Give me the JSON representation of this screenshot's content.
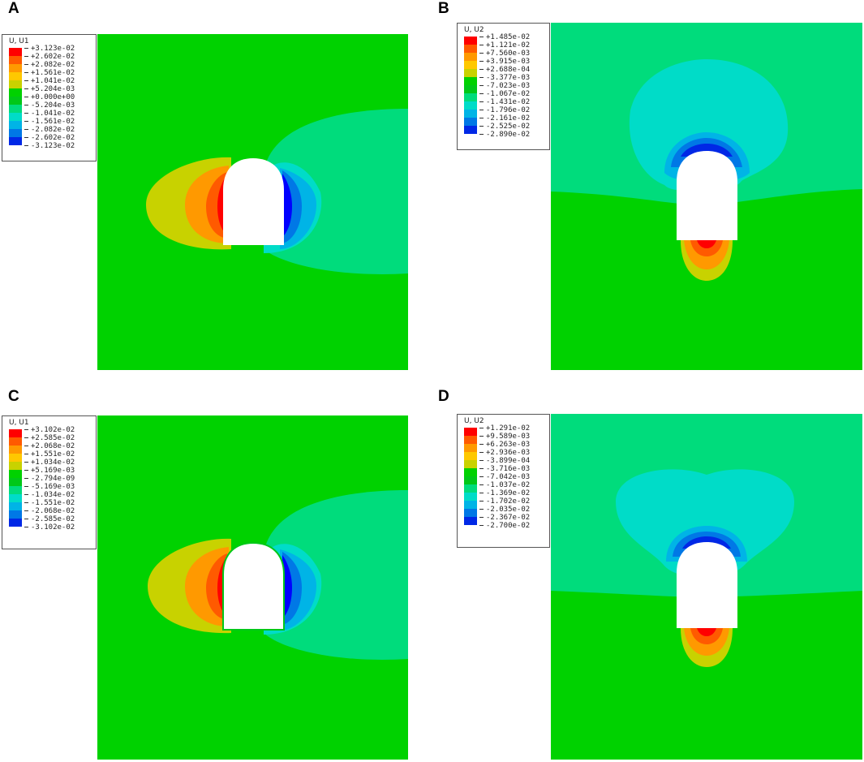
{
  "palette": [
    "#ff0000",
    "#ff5a00",
    "#ff9900",
    "#ffc800",
    "#c8d200",
    "#00d200",
    "#00c818",
    "#00dc7c",
    "#00dcc8",
    "#00b4e6",
    "#0078e6",
    "#0028e6",
    "#0000ff"
  ],
  "panels": [
    {
      "letter": "A",
      "legend": {
        "title": "U, U1",
        "values": [
          "+3.123e-02",
          "+2.602e-02",
          "+2.082e-02",
          "+1.561e-02",
          "+1.041e-02",
          "+5.204e-03",
          "+0.000e+00",
          "-5.204e-03",
          "-1.041e-02",
          "-1.561e-02",
          "-2.082e-02",
          "-2.602e-02",
          "-3.123e-02"
        ]
      }
    },
    {
      "letter": "B",
      "legend": {
        "title": "U, U2",
        "values": [
          "+1.485e-02",
          "+1.121e-02",
          "+7.560e-03",
          "+3.915e-03",
          "+2.688e-04",
          "-3.377e-03",
          "-7.023e-03",
          "-1.067e-02",
          "-1.431e-02",
          "-1.796e-02",
          "-2.161e-02",
          "-2.525e-02",
          "-2.890e-02"
        ]
      }
    },
    {
      "letter": "C",
      "legend": {
        "title": "U, U1",
        "values": [
          "+3.102e-02",
          "+2.585e-02",
          "+2.068e-02",
          "+1.551e-02",
          "+1.034e-02",
          "+5.169e-03",
          "-2.794e-09",
          "-5.169e-03",
          "-1.034e-02",
          "-1.551e-02",
          "-2.068e-02",
          "-2.585e-02",
          "-3.102e-02"
        ]
      }
    },
    {
      "letter": "D",
      "legend": {
        "title": "U, U2",
        "values": [
          "+1.291e-02",
          "+9.589e-03",
          "+6.263e-03",
          "+2.936e-03",
          "-3.899e-04",
          "-3.716e-03",
          "-7.042e-03",
          "-1.037e-02",
          "-1.369e-02",
          "-1.702e-02",
          "-2.035e-02",
          "-2.367e-02",
          "-2.700e-02"
        ]
      }
    }
  ]
}
